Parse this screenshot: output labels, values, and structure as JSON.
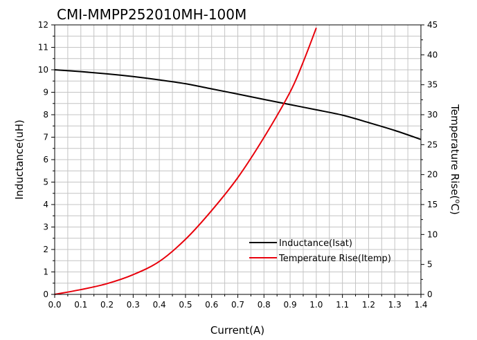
{
  "chart_data": {
    "type": "line",
    "title": "CMI-MMPP252010MH-100M",
    "xlabel": "Current(A)",
    "ylabel_left": "Inductance(uH)",
    "ylabel_right_main": "Temperature Rise(",
    "ylabel_right_sup": "o",
    "ylabel_right_tail": "C)",
    "xlim": [
      0,
      1.4
    ],
    "ylim_left": [
      0,
      12
    ],
    "ylim_right": [
      0,
      45
    ],
    "x_ticks": [
      "0.0",
      "0.1",
      "0.2",
      "0.3",
      "0.4",
      "0.5",
      "0.6",
      "0.7",
      "0.8",
      "0.9",
      "1.0",
      "1.1",
      "1.2",
      "1.3",
      "1.4"
    ],
    "y_left_ticks": [
      "0",
      "1",
      "2",
      "3",
      "4",
      "5",
      "6",
      "7",
      "8",
      "9",
      "10",
      "11",
      "12"
    ],
    "y_right_ticks": [
      "0",
      "5",
      "10",
      "15",
      "20",
      "25",
      "30",
      "35",
      "40",
      "45"
    ],
    "grid": true,
    "legend_position": "lower-right",
    "series": [
      {
        "name": "Inductance(Isat)",
        "axis": "left",
        "color": "#000000",
        "x": [
          0.0,
          0.1,
          0.2,
          0.3,
          0.4,
          0.5,
          0.6,
          0.7,
          0.8,
          0.9,
          1.0,
          1.1,
          1.2,
          1.3,
          1.4
        ],
        "y": [
          10.0,
          9.92,
          9.82,
          9.7,
          9.55,
          9.38,
          9.15,
          8.92,
          8.68,
          8.45,
          8.22,
          7.98,
          7.65,
          7.3,
          6.9
        ]
      },
      {
        "name": "Temperature Rise(Itemp)",
        "axis": "right",
        "color": "#e8000b",
        "x": [
          0.0,
          0.1,
          0.2,
          0.3,
          0.4,
          0.5,
          0.6,
          0.7,
          0.8,
          0.9,
          0.95,
          1.0
        ],
        "y": [
          0.0,
          0.8,
          1.8,
          3.3,
          5.5,
          9.2,
          14.0,
          19.5,
          26.2,
          33.8,
          38.8,
          44.5
        ]
      }
    ]
  }
}
